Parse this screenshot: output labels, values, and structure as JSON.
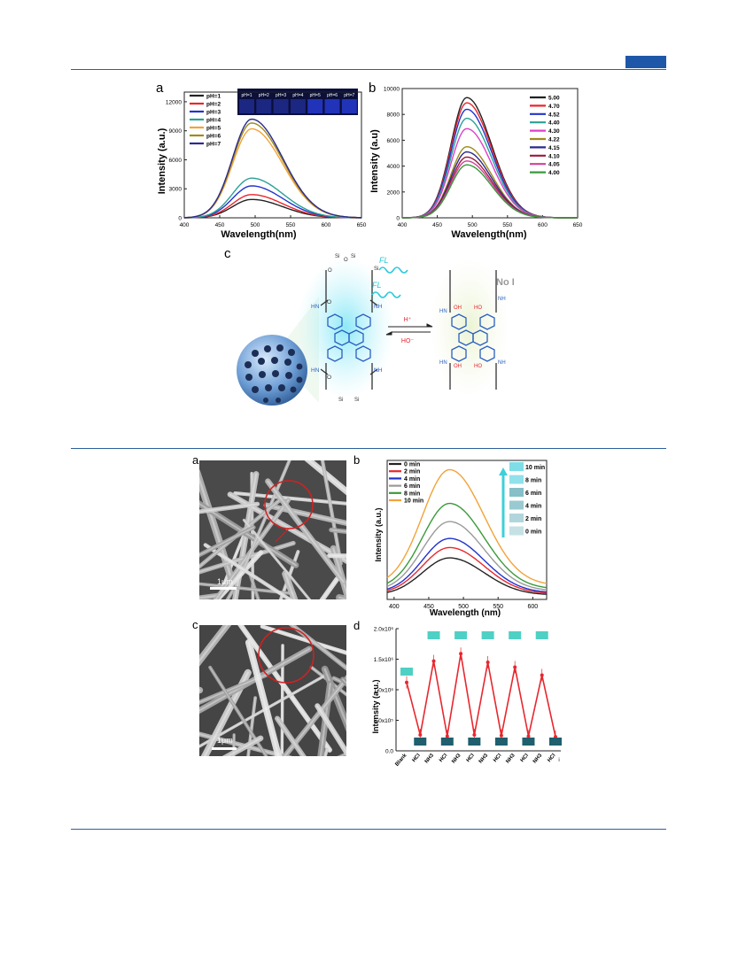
{
  "figure1": {
    "panel_a": {
      "letter": "a",
      "chart_data": {
        "type": "line",
        "xlabel": "Wavelength(nm)",
        "ylabel": "Intensity (a.u.)",
        "xlim": [
          400,
          650
        ],
        "ylim": [
          0,
          13000
        ],
        "xticks": [
          "400",
          "450",
          "500",
          "550",
          "600",
          "650"
        ],
        "yticks": [
          "0",
          "3000",
          "6000",
          "9000",
          "12000"
        ],
        "legend_position": "top-left",
        "inset_labels": [
          "pH=1",
          "pH=2",
          "pH=3",
          "pH=4",
          "pH=5",
          "pH=6",
          "pH=7"
        ],
        "series": [
          {
            "name": "pH=1",
            "color": "#222222",
            "peak": 1900
          },
          {
            "name": "pH=2",
            "color": "#e8272e",
            "peak": 2400
          },
          {
            "name": "pH=3",
            "color": "#2233cc",
            "peak": 3300
          },
          {
            "name": "pH=4",
            "color": "#2aa198",
            "peak": 4100
          },
          {
            "name": "pH=5",
            "color": "#f2a33a",
            "peak": 9200
          },
          {
            "name": "pH=6",
            "color": "#a08b1c",
            "peak": 9800
          },
          {
            "name": "pH=7",
            "color": "#2a2a8e",
            "peak": 10200
          }
        ],
        "peak_x": 495
      }
    },
    "panel_b": {
      "letter": "b",
      "chart_data": {
        "type": "line",
        "xlabel": "Wavelength(nm)",
        "ylabel": "Intensity (a.u)",
        "xlim": [
          400,
          650
        ],
        "ylim": [
          0,
          10000
        ],
        "xticks": [
          "400",
          "450",
          "500",
          "550",
          "600",
          "650"
        ],
        "yticks": [
          "0",
          "2000",
          "4000",
          "6000",
          "8000",
          "10000"
        ],
        "legend_position": "top-right",
        "series": [
          {
            "name": "5.00",
            "color": "#222222",
            "peak": 9300
          },
          {
            "name": "4.70",
            "color": "#e8272e",
            "peak": 8900
          },
          {
            "name": "4.52",
            "color": "#2233cc",
            "peak": 8400
          },
          {
            "name": "4.40",
            "color": "#2aa198",
            "peak": 7700
          },
          {
            "name": "4.30",
            "color": "#e040c8",
            "peak": 6900
          },
          {
            "name": "4.22",
            "color": "#a08b1c",
            "peak": 5500
          },
          {
            "name": "4.15",
            "color": "#2a2a8e",
            "peak": 5100
          },
          {
            "name": "4.10",
            "color": "#9a1a3a",
            "peak": 4700
          },
          {
            "name": "4.05",
            "color": "#d0409a",
            "peak": 4400
          },
          {
            "name": "4.00",
            "color": "#3a9a3a",
            "peak": 4100
          }
        ],
        "peak_x": 492
      }
    },
    "panel_c": {
      "letter": "c",
      "fl_label": "FL",
      "no_fl_label": "No FL",
      "h_plus": "H⁺",
      "ho_minus": "HO⁻",
      "left_chem": {
        "top": [
          "Si",
          "O",
          "Si",
          "O",
          "Si"
        ],
        "groups": [
          "HN",
          "O",
          "NH",
          "HN",
          "O",
          "NH"
        ]
      },
      "right_chem": {
        "oh": [
          "OH",
          "HO"
        ],
        "groups": [
          "HN",
          "NH"
        ]
      }
    }
  },
  "figure2": {
    "panel_a": {
      "letter": "a",
      "scale": "1μm"
    },
    "panel_c": {
      "letter": "c",
      "scale": "1μm"
    },
    "panel_b": {
      "letter": "b",
      "chart_data": {
        "type": "line",
        "xlabel": "Wavelength (nm)",
        "ylabel": "Intensity (a.u.)",
        "xlim": [
          390,
          620
        ],
        "xticks": [
          "400",
          "450",
          "500",
          "550",
          "600"
        ],
        "legend_position": "top-left",
        "swatch_labels": [
          "10 min",
          "8 min",
          "6 min",
          "4 min",
          "2 min",
          "0 min"
        ],
        "series": [
          {
            "name": "0 min",
            "color": "#222222",
            "peak": 0.32
          },
          {
            "name": "2 min",
            "color": "#e8272e",
            "peak": 0.4
          },
          {
            "name": "4 min",
            "color": "#2233cc",
            "peak": 0.47
          },
          {
            "name": "6 min",
            "color": "#9a9a9a",
            "peak": 0.6
          },
          {
            "name": "8 min",
            "color": "#3a9a3a",
            "peak": 0.74
          },
          {
            "name": "10 min",
            "color": "#f2a33a",
            "peak": 1.0
          }
        ],
        "peak_x": 480
      }
    },
    "panel_d": {
      "letter": "d",
      "chart_data": {
        "type": "line",
        "ylabel": "Intensity (a.u.)",
        "ylim": [
          0,
          2000000
        ],
        "ytick_labels": [
          "0.0",
          "5.0x10⁵",
          "1.0x10⁶",
          "1.5x10⁶",
          "2.0x10⁶"
        ],
        "categories": [
          "Blank",
          "HCl",
          "NH3",
          "HCl",
          "NH3",
          "HCl",
          "NH3",
          "HCl",
          "NH3",
          "HCl",
          "NH3",
          "HCl"
        ],
        "values": [
          1120000,
          260000,
          1470000,
          240000,
          1590000,
          260000,
          1450000,
          250000,
          1370000,
          240000,
          1240000,
          230000
        ],
        "color": "#e8272e",
        "trailing_tick": "i"
      }
    }
  }
}
